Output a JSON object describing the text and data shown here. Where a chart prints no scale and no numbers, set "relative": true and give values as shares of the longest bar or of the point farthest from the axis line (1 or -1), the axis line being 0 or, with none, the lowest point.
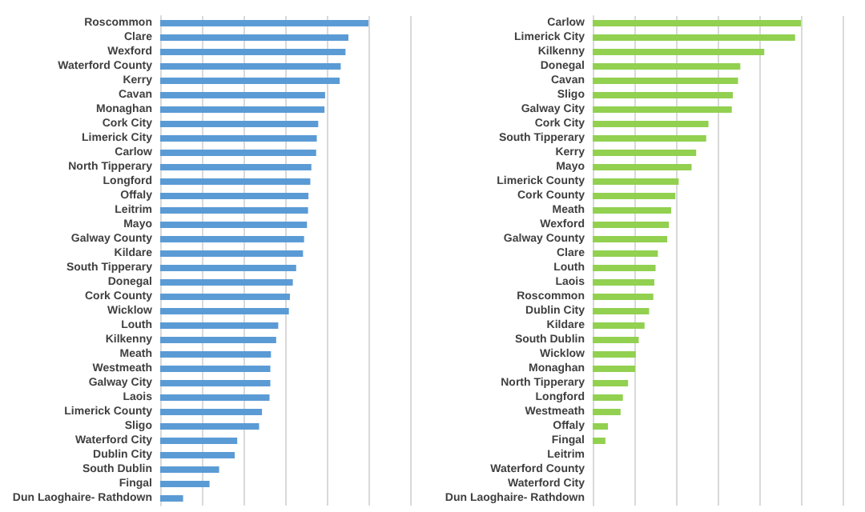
{
  "chart_data": [
    {
      "type": "bar",
      "orientation": "horizontal",
      "relative": true,
      "grid": "x",
      "categories": [
        "Roscommon",
        "Clare",
        "Wexford",
        "Waterford County",
        "Kerry",
        "Cavan",
        "Monaghan",
        "Cork City",
        "Limerick City",
        "Carlow",
        "North Tipperary",
        "Longford",
        "Offaly",
        "Leitrim",
        "Mayo",
        "Galway County",
        "Kildare",
        "South Tipperary",
        "Donegal",
        "Cork County",
        "Wicklow",
        "Louth",
        "Kilkenny",
        "Meath",
        "Westmeath",
        "Galway City",
        "Laois",
        "Limerick County",
        "Sligo",
        "Waterford City",
        "Dublin City",
        "South Dublin",
        "Fingal",
        "Dun Laoghaire- Rathdown"
      ],
      "series": [
        {
          "color": "#5b9bd5",
          "values": [
            1,
            0.904,
            0.89,
            0.867,
            0.862,
            0.792,
            0.789,
            0.759,
            0.752,
            0.749,
            0.726,
            0.721,
            0.712,
            0.71,
            0.705,
            0.691,
            0.686,
            0.653,
            0.637,
            0.623,
            0.618,
            0.567,
            0.557,
            0.532,
            0.529,
            0.529,
            0.525,
            0.489,
            0.475,
            0.37,
            0.358,
            0.283,
            0.237,
            0.11
          ]
        }
      ]
    },
    {
      "type": "bar",
      "orientation": "horizontal",
      "relative": true,
      "grid": "x",
      "categories": [
        "Carlow",
        "Limerick City",
        "Kilkenny",
        "Donegal",
        "Cavan",
        "Sligo",
        "Galway City",
        "Cork City",
        "South Tipperary",
        "Kerry",
        "Mayo",
        "Limerick County",
        "Cork County",
        "Meath",
        "Wexford",
        "Galway County",
        "Clare",
        "Louth",
        "Laois",
        "Roscommon",
        "Dublin City",
        "Kildare",
        "South Dublin",
        "Wicklow",
        "Monaghan",
        "North Tipperary",
        "Longford",
        "Westmeath",
        "Offaly",
        "Fingal",
        "Leitrim",
        "Waterford County",
        "Waterford City",
        "Dun Laoghaire- Rathdown"
      ],
      "series": [
        {
          "color": "#92d050",
          "values": [
            1,
            0.972,
            0.824,
            0.709,
            0.698,
            0.673,
            0.668,
            0.556,
            0.545,
            0.497,
            0.475,
            0.413,
            0.397,
            0.377,
            0.366,
            0.358,
            0.313,
            0.302,
            0.296,
            0.291,
            0.271,
            0.249,
            0.221,
            0.207,
            0.204,
            0.17,
            0.145,
            0.134,
            0.073,
            0.061,
            0,
            0,
            0,
            0
          ]
        }
      ]
    }
  ]
}
